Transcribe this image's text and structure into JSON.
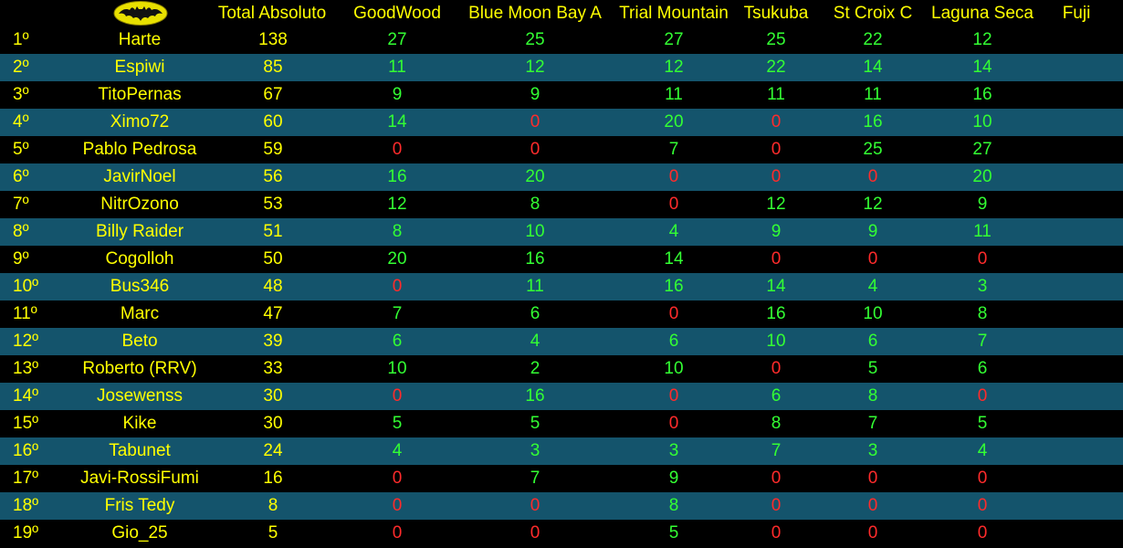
{
  "header": {
    "total": "Total Absoluto",
    "tracks": [
      "GoodWood",
      "Blue Moon Bay A",
      "Trial Mountain",
      "Tsukuba",
      "St Croix C",
      "Laguna Seca",
      "Fuji"
    ]
  },
  "rows": [
    {
      "pos": "1º",
      "name": "Harte",
      "total": "138",
      "scores": [
        "27",
        "25",
        "27",
        "25",
        "22",
        "12"
      ]
    },
    {
      "pos": "2º",
      "name": "Espiwi",
      "total": "85",
      "scores": [
        "11",
        "12",
        "12",
        "22",
        "14",
        "14"
      ]
    },
    {
      "pos": "3º",
      "name": "TitoPernas",
      "total": "67",
      "scores": [
        "9",
        "9",
        "11",
        "11",
        "11",
        "16"
      ]
    },
    {
      "pos": "4º",
      "name": "Ximo72",
      "total": "60",
      "scores": [
        "14",
        "0",
        "20",
        "0",
        "16",
        "10"
      ]
    },
    {
      "pos": "5º",
      "name": "Pablo Pedrosa",
      "total": "59",
      "scores": [
        "0",
        "0",
        "7",
        "0",
        "25",
        "27"
      ]
    },
    {
      "pos": "6º",
      "name": "JavirNoel",
      "total": "56",
      "scores": [
        "16",
        "20",
        "0",
        "0",
        "0",
        "20"
      ]
    },
    {
      "pos": "7º",
      "name": "NitrOzono",
      "total": "53",
      "scores": [
        "12",
        "8",
        "0",
        "12",
        "12",
        "9"
      ]
    },
    {
      "pos": "8º",
      "name": "Billy Raider",
      "total": "51",
      "scores": [
        "8",
        "10",
        "4",
        "9",
        "9",
        "11"
      ]
    },
    {
      "pos": "9º",
      "name": "Cogolloh",
      "total": "50",
      "scores": [
        "20",
        "16",
        "14",
        "0",
        "0",
        "0"
      ]
    },
    {
      "pos": "10º",
      "name": "Bus346",
      "total": "48",
      "scores": [
        "0",
        "11",
        "16",
        "14",
        "4",
        "3"
      ]
    },
    {
      "pos": "11º",
      "name": "Marc",
      "total": "47",
      "scores": [
        "7",
        "6",
        "0",
        "16",
        "10",
        "8"
      ]
    },
    {
      "pos": "12º",
      "name": "Beto",
      "total": "39",
      "scores": [
        "6",
        "4",
        "6",
        "10",
        "6",
        "7"
      ]
    },
    {
      "pos": "13º",
      "name": "Roberto (RRV)",
      "total": "33",
      "scores": [
        "10",
        "2",
        "10",
        "0",
        "5",
        "6"
      ]
    },
    {
      "pos": "14º",
      "name": "Josewenss",
      "total": "30",
      "scores": [
        "0",
        "16",
        "0",
        "6",
        "8",
        "0"
      ]
    },
    {
      "pos": "15º",
      "name": "Kike",
      "total": "30",
      "scores": [
        "5",
        "5",
        "0",
        "8",
        "7",
        "5"
      ]
    },
    {
      "pos": "16º",
      "name": "Tabunet",
      "total": "24",
      "scores": [
        "4",
        "3",
        "3",
        "7",
        "3",
        "4"
      ]
    },
    {
      "pos": "17º",
      "name": "Javi-RossiFumi",
      "total": "16",
      "scores": [
        "0",
        "7",
        "9",
        "0",
        "0",
        "0"
      ]
    },
    {
      "pos": "18º",
      "name": "Fris Tedy",
      "total": "8",
      "scores": [
        "0",
        "0",
        "8",
        "0",
        "0",
        "0"
      ]
    },
    {
      "pos": "19º",
      "name": "Gio_25",
      "total": "5",
      "scores": [
        "0",
        "0",
        "5",
        "0",
        "0",
        "0"
      ]
    }
  ],
  "colors": {
    "text": "#ffff00",
    "positive": "#33ff33",
    "zero": "#ff2b2b",
    "alt_row": "#14546c",
    "background": "#000000"
  },
  "logo_icon": "batman-logo-icon"
}
